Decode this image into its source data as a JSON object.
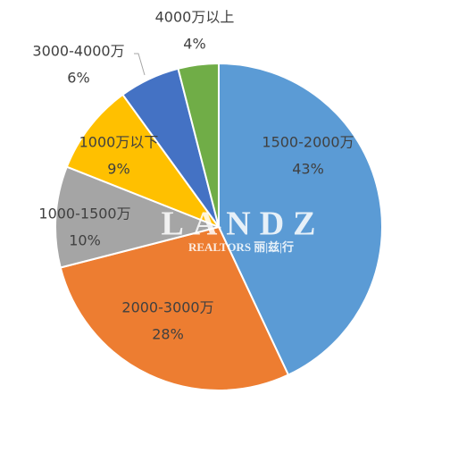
{
  "chart_data": {
    "type": "pie",
    "categories": [
      "1500-2000万",
      "2000-3000万",
      "1000-1500万",
      "1000万以下",
      "3000-4000万",
      "4000万以上"
    ],
    "values": [
      43,
      28,
      10,
      9,
      6,
      4
    ],
    "value_labels": [
      "43%",
      "28%",
      "10%",
      "9%",
      "6%",
      "4%"
    ],
    "colors": [
      "#5b9bd5",
      "#ed7d31",
      "#a5a5a5",
      "#ffc000",
      "#4472c4",
      "#70ad47"
    ],
    "watermark": {
      "logo": "LANDZ",
      "sub": "REALTORS 丽|兹|行"
    }
  }
}
